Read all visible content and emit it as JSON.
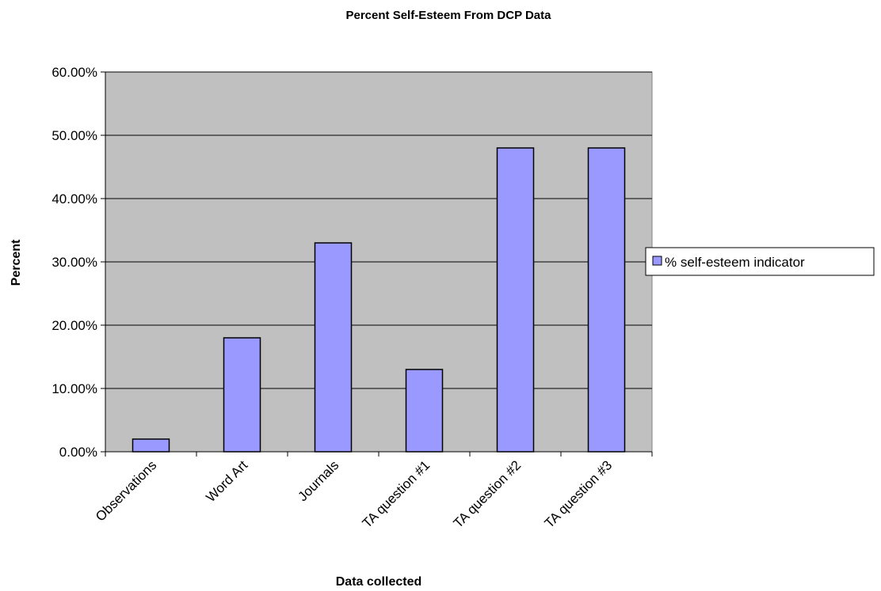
{
  "chart_data": {
    "type": "bar",
    "title": "Percent Self-Esteem From DCP Data",
    "xlabel": "Data collected",
    "ylabel": "Percent",
    "categories": [
      "Observations",
      "Word Art",
      "Journals",
      "TA question #1",
      "TA question #2",
      "TA question #3"
    ],
    "series": [
      {
        "name": "% self-esteem indicator",
        "values": [
          2,
          18,
          33,
          13,
          48,
          48
        ],
        "color": "#9999ff"
      }
    ],
    "ylim": [
      0,
      60
    ],
    "yticks": [
      0,
      10,
      20,
      30,
      40,
      50,
      60
    ],
    "ytick_labels": [
      "0.00%",
      "10.00%",
      "20.00%",
      "30.00%",
      "40.00%",
      "50.00%",
      "60.00%"
    ],
    "grid": true,
    "plot_background": "#c0c0c0",
    "legend_position": "right"
  }
}
